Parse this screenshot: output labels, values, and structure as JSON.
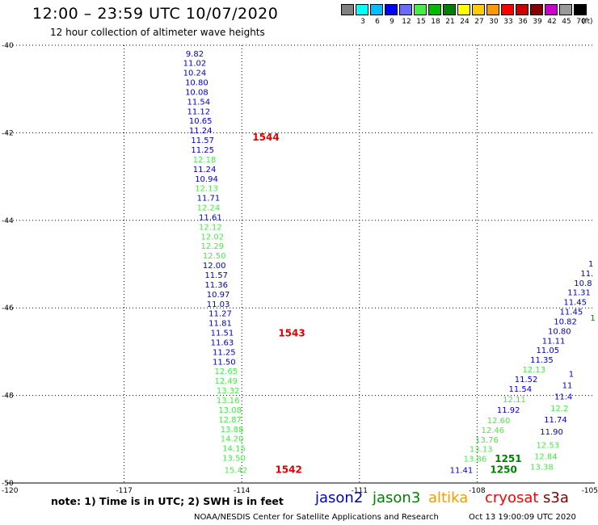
{
  "header": {
    "title": "12:00 – 23:59 UTC 10/07/2020",
    "subtitle": "12 hour collection of altimeter wave heights"
  },
  "legend": {
    "unit": "(ft)",
    "swatches": [
      {
        "label": "",
        "color": "#808080"
      },
      {
        "label": "3",
        "color": "#00ffff"
      },
      {
        "label": "6",
        "color": "#00bfff"
      },
      {
        "label": "9",
        "color": "#0000ff"
      },
      {
        "label": "12",
        "color": "#6a6aff"
      },
      {
        "label": "15",
        "color": "#44ee44"
      },
      {
        "label": "18",
        "color": "#00bb00"
      },
      {
        "label": "21",
        "color": "#008000"
      },
      {
        "label": "24",
        "color": "#ffff00"
      },
      {
        "label": "27",
        "color": "#ffcc00"
      },
      {
        "label": "30",
        "color": "#ff9900"
      },
      {
        "label": "33",
        "color": "#ff0000"
      },
      {
        "label": "36",
        "color": "#cc0000"
      },
      {
        "label": "39",
        "color": "#880000"
      },
      {
        "label": "42",
        "color": "#cc00cc"
      },
      {
        "label": "45",
        "color": "#999999"
      },
      {
        "label": "70",
        "color": "#000000"
      }
    ]
  },
  "map": {
    "lat_range": [
      50,
      40
    ],
    "lon_range": [
      -120,
      -105
    ],
    "lat_ticks": [
      "40",
      "42",
      "44",
      "46",
      "48",
      "50"
    ],
    "lon_ticks": [
      "-120",
      "-117",
      "-114",
      "-111",
      "-108",
      "-105"
    ],
    "lat_label_prefix": "-"
  },
  "colors": {
    "jason2": "#0000cc",
    "jason3": "#008000",
    "altika": "#ff9900",
    "cryosat": "#ff0000",
    "s3a": "#800000",
    "light_green": "#44ee44",
    "time_red": "#dd0000",
    "time_green": "#008000"
  },
  "wave_heights": [
    {
      "lat": 40.18,
      "lon": -115.2,
      "text": "9.82",
      "color": "#0000cc"
    },
    {
      "lat": 40.4,
      "lon": -115.2,
      "text": "11.02",
      "color": "#0000cc"
    },
    {
      "lat": 40.62,
      "lon": -115.2,
      "text": "10.24",
      "color": "#0000cc"
    },
    {
      "lat": 40.84,
      "lon": -115.15,
      "text": "10.80",
      "color": "#0000cc"
    },
    {
      "lat": 41.06,
      "lon": -115.15,
      "text": "10.08",
      "color": "#0000cc"
    },
    {
      "lat": 41.28,
      "lon": -115.1,
      "text": "11.54",
      "color": "#0000cc"
    },
    {
      "lat": 41.5,
      "lon": -115.1,
      "text": "11.12",
      "color": "#0000cc"
    },
    {
      "lat": 41.72,
      "lon": -115.05,
      "text": "10.65",
      "color": "#0000cc"
    },
    {
      "lat": 41.94,
      "lon": -115.05,
      "text": "11.24",
      "color": "#0000cc"
    },
    {
      "lat": 42.16,
      "lon": -115,
      "text": "11.57",
      "color": "#0000cc"
    },
    {
      "lat": 42.38,
      "lon": -115,
      "text": "11.25",
      "color": "#0000cc"
    },
    {
      "lat": 42.6,
      "lon": -114.95,
      "text": "12.18",
      "color": "#44ee44"
    },
    {
      "lat": 42.82,
      "lon": -114.95,
      "text": "11.24",
      "color": "#0000cc"
    },
    {
      "lat": 43.04,
      "lon": -114.9,
      "text": "10.94",
      "color": "#0000cc"
    },
    {
      "lat": 43.26,
      "lon": -114.9,
      "text": "12.13",
      "color": "#44ee44"
    },
    {
      "lat": 43.48,
      "lon": -114.85,
      "text": "11.71",
      "color": "#0000cc"
    },
    {
      "lat": 43.7,
      "lon": -114.85,
      "text": "12.24",
      "color": "#44ee44"
    },
    {
      "lat": 43.92,
      "lon": -114.8,
      "text": "11.61",
      "color": "#0000cc"
    },
    {
      "lat": 44.14,
      "lon": -114.8,
      "text": "12.12",
      "color": "#44ee44"
    },
    {
      "lat": 44.36,
      "lon": -114.75,
      "text": "12.02",
      "color": "#44ee44"
    },
    {
      "lat": 44.58,
      "lon": -114.75,
      "text": "12.29",
      "color": "#44ee44"
    },
    {
      "lat": 44.8,
      "lon": -114.7,
      "text": "12.50",
      "color": "#44ee44"
    },
    {
      "lat": 45.02,
      "lon": -114.7,
      "text": "12.00",
      "color": "#0000cc"
    },
    {
      "lat": 45.24,
      "lon": -114.65,
      "text": "11.57",
      "color": "#0000cc"
    },
    {
      "lat": 45.46,
      "lon": -114.65,
      "text": "11.36",
      "color": "#0000cc"
    },
    {
      "lat": 45.68,
      "lon": -114.6,
      "text": "10.97",
      "color": "#0000cc"
    },
    {
      "lat": 45.9,
      "lon": -114.6,
      "text": "11.03",
      "color": "#0000cc"
    },
    {
      "lat": 46.12,
      "lon": -114.55,
      "text": "11.27",
      "color": "#0000cc"
    },
    {
      "lat": 46.34,
      "lon": -114.55,
      "text": "11.81",
      "color": "#0000cc"
    },
    {
      "lat": 46.56,
      "lon": -114.5,
      "text": "11.51",
      "color": "#0000cc"
    },
    {
      "lat": 46.78,
      "lon": -114.5,
      "text": "11.63",
      "color": "#0000cc"
    },
    {
      "lat": 47,
      "lon": -114.45,
      "text": "11.25",
      "color": "#0000cc"
    },
    {
      "lat": 47.22,
      "lon": -114.45,
      "text": "11.50",
      "color": "#0000cc"
    },
    {
      "lat": 47.44,
      "lon": -114.4,
      "text": "12.65",
      "color": "#44ee44"
    },
    {
      "lat": 47.66,
      "lon": -114.4,
      "text": "12.49",
      "color": "#44ee44"
    },
    {
      "lat": 47.88,
      "lon": -114.35,
      "text": "13.32",
      "color": "#44ee44"
    },
    {
      "lat": 48.1,
      "lon": -114.35,
      "text": "13.16",
      "color": "#44ee44"
    },
    {
      "lat": 48.32,
      "lon": -114.3,
      "text": "13.08",
      "color": "#44ee44"
    },
    {
      "lat": 48.54,
      "lon": -114.3,
      "text": "12.87",
      "color": "#44ee44"
    },
    {
      "lat": 48.76,
      "lon": -114.25,
      "text": "13.88",
      "color": "#44ee44"
    },
    {
      "lat": 48.98,
      "lon": -114.25,
      "text": "14.20",
      "color": "#44ee44"
    },
    {
      "lat": 49.2,
      "lon": -114.2,
      "text": "14.15",
      "color": "#44ee44"
    },
    {
      "lat": 49.42,
      "lon": -114.2,
      "text": "13.50",
      "color": "#44ee44"
    },
    {
      "lat": 49.7,
      "lon": -114.15,
      "text": "15.42",
      "color": "#44ee44"
    },
    {
      "lat": 49.7,
      "lon": -108.4,
      "text": "11.41",
      "color": "#0000cc"
    },
    {
      "lat": 49.44,
      "lon": -108.05,
      "text": "13.86",
      "color": "#44ee44"
    },
    {
      "lat": 49.22,
      "lon": -107.9,
      "text": "13.13",
      "color": "#44ee44"
    },
    {
      "lat": 49.0,
      "lon": -107.75,
      "text": "13.76",
      "color": "#44ee44"
    },
    {
      "lat": 48.78,
      "lon": -107.6,
      "text": "12.46",
      "color": "#44ee44"
    },
    {
      "lat": 48.56,
      "lon": -107.45,
      "text": "12.60",
      "color": "#44ee44"
    },
    {
      "lat": 48.32,
      "lon": -107.2,
      "text": "11.92",
      "color": "#0000cc"
    },
    {
      "lat": 48.08,
      "lon": -107.05,
      "text": "12.11",
      "color": "#44ee44"
    },
    {
      "lat": 47.84,
      "lon": -106.9,
      "text": "11.54",
      "color": "#0000cc"
    },
    {
      "lat": 47.62,
      "lon": -106.75,
      "text": "11.52",
      "color": "#0000cc"
    },
    {
      "lat": 47.4,
      "lon": -106.55,
      "text": "12.13",
      "color": "#44ee44"
    },
    {
      "lat": 47.18,
      "lon": -106.35,
      "text": "11.35",
      "color": "#0000cc"
    },
    {
      "lat": 46.96,
      "lon": -106.2,
      "text": "11.05",
      "color": "#0000cc"
    },
    {
      "lat": 46.74,
      "lon": -106.05,
      "text": "11.11",
      "color": "#0000cc"
    },
    {
      "lat": 46.52,
      "lon": -105.9,
      "text": "10.80",
      "color": "#0000cc"
    },
    {
      "lat": 46.3,
      "lon": -105.75,
      "text": "10.82",
      "color": "#0000cc"
    },
    {
      "lat": 46.08,
      "lon": -105.6,
      "text": "11.45",
      "color": "#0000cc"
    },
    {
      "lat": 45.86,
      "lon": -105.5,
      "text": "11.45",
      "color": "#0000cc"
    },
    {
      "lat": 45.64,
      "lon": -105.4,
      "text": "11.31",
      "color": "#0000cc"
    },
    {
      "lat": 45.42,
      "lon": -105.3,
      "text": "10.8",
      "color": "#0000cc"
    },
    {
      "lat": 45.2,
      "lon": -105.2,
      "text": "11.",
      "color": "#0000cc"
    },
    {
      "lat": 44.98,
      "lon": -105.1,
      "text": "1",
      "color": "#0000cc"
    },
    {
      "lat": 46.22,
      "lon": -105.05,
      "text": "1",
      "color": "#008000"
    },
    {
      "lat": 49.62,
      "lon": -106.35,
      "text": "13.38",
      "color": "#44ee44"
    },
    {
      "lat": 49.38,
      "lon": -106.25,
      "text": "12.84",
      "color": "#44ee44"
    },
    {
      "lat": 49.12,
      "lon": -106.2,
      "text": "12.53",
      "color": "#44ee44"
    },
    {
      "lat": 48.82,
      "lon": -106.1,
      "text": "11.90",
      "color": "#0000cc"
    },
    {
      "lat": 48.54,
      "lon": -106.0,
      "text": "11.74",
      "color": "#0000cc"
    },
    {
      "lat": 48.28,
      "lon": -105.9,
      "text": "12.2",
      "color": "#44ee44"
    },
    {
      "lat": 48.02,
      "lon": -105.8,
      "text": "11.4",
      "color": "#0000cc"
    },
    {
      "lat": 47.76,
      "lon": -105.7,
      "text": "11",
      "color": "#0000cc"
    },
    {
      "lat": 47.5,
      "lon": -105.6,
      "text": "1",
      "color": "#0000cc"
    }
  ],
  "time_labels": [
    {
      "lat": 42.1,
      "lon": -113.73,
      "text": "1544",
      "color": "#dd0000"
    },
    {
      "lat": 46.58,
      "lon": -113.07,
      "text": "1543",
      "color": "#dd0000"
    },
    {
      "lat": 49.7,
      "lon": -113.15,
      "text": "1542",
      "color": "#dd0000"
    },
    {
      "lat": 49.45,
      "lon": -107.55,
      "text": "1251",
      "color": "#008000"
    },
    {
      "lat": 49.7,
      "lon": -107.67,
      "text": "1250",
      "color": "#008000"
    }
  ],
  "footer": {
    "note": "note: 1) Time is in UTC; 2) SWH is in feet",
    "satellites": [
      {
        "name": "jason2",
        "color": "#0000cc"
      },
      {
        "name": "jason3",
        "color": "#008000"
      },
      {
        "name": "altika",
        "color": "#ff9900"
      },
      {
        "name": "cryosat",
        "color": "#ff0000"
      },
      {
        "name": "s3a",
        "color": "#800000"
      }
    ],
    "credit": "NOAA/NESDIS Center for Satellite Applications and Research",
    "timestamp": "Oct 13 19:00:09 UTC 2020"
  }
}
